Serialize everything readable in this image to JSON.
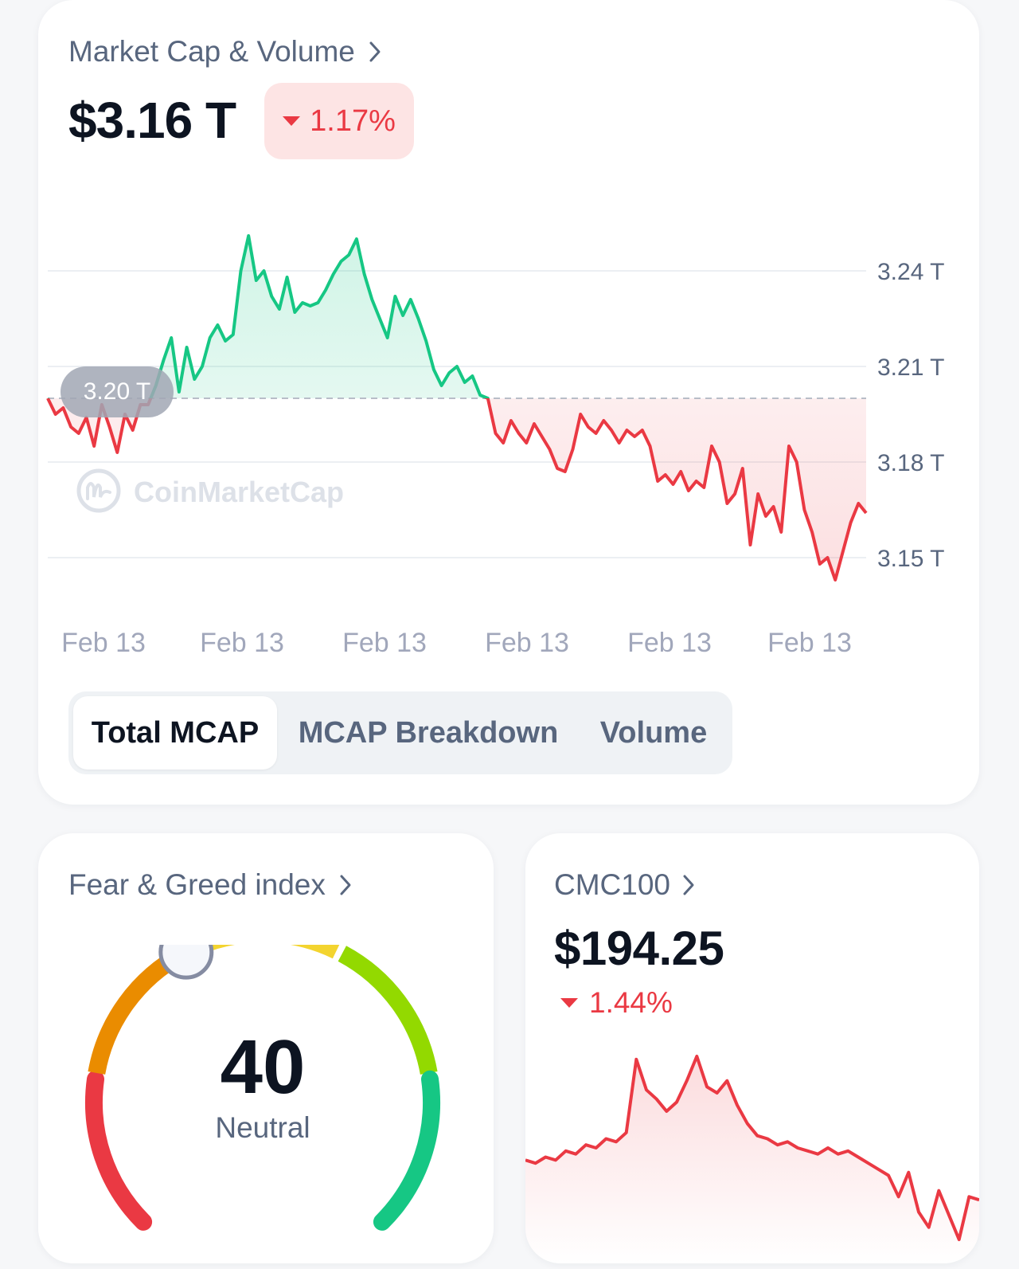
{
  "market_card": {
    "title": "Market Cap & Volume",
    "value": "$3.16 T",
    "change": "1.17%",
    "change_direction": "down",
    "watermark": "CoinMarketCap",
    "reference_label": "3.20 T",
    "tabs": [
      {
        "label": "Total MCAP",
        "active": true
      },
      {
        "label": "MCAP Breakdown",
        "active": false
      },
      {
        "label": "Volume",
        "active": false
      }
    ]
  },
  "fear_greed": {
    "title": "Fear & Greed index",
    "value": "40",
    "label": "Neutral",
    "level": 40
  },
  "cmc100": {
    "title": "CMC100",
    "value": "$194.25",
    "change": "1.44%",
    "change_direction": "down"
  },
  "colors": {
    "up": "#16c784",
    "down": "#ea3943",
    "grid": "#eceff3",
    "label": "#58667e",
    "axis": "#a1a7bb"
  },
  "chart_data": [
    {
      "type": "line",
      "title": "",
      "baseline": 3.2,
      "y_ticks": [
        "3.24 T",
        "3.21 T",
        "3.18 T",
        "3.15 T"
      ],
      "y_tick_values": [
        3.24,
        3.21,
        3.18,
        3.15
      ],
      "ylim": [
        3.13,
        3.265
      ],
      "x_ticks": [
        "Feb 13",
        "Feb 13",
        "Feb 13",
        "Feb 13",
        "Feb 13",
        "Feb 13"
      ],
      "unit": "T",
      "series": [
        {
          "values": [
            3.2,
            3.195,
            3.197,
            3.191,
            3.189,
            3.194,
            3.185,
            3.198,
            3.191,
            3.183,
            3.195,
            3.19,
            3.198,
            3.198,
            3.204,
            3.212,
            3.219,
            3.202,
            3.216,
            3.206,
            3.21,
            3.219,
            3.223,
            3.218,
            3.22,
            3.24,
            3.251,
            3.237,
            3.24,
            3.232,
            3.228,
            3.238,
            3.227,
            3.23,
            3.229,
            3.23,
            3.234,
            3.239,
            3.243,
            3.245,
            3.25,
            3.239,
            3.231,
            3.225,
            3.219,
            3.232,
            3.226,
            3.231,
            3.225,
            3.218,
            3.209,
            3.204,
            3.208,
            3.21,
            3.205,
            3.207,
            3.201,
            3.2,
            3.189,
            3.186,
            3.193,
            3.189,
            3.186,
            3.192,
            3.188,
            3.184,
            3.178,
            3.177,
            3.184,
            3.195,
            3.191,
            3.189,
            3.193,
            3.19,
            3.186,
            3.19,
            3.188,
            3.19,
            3.185,
            3.174,
            3.176,
            3.173,
            3.177,
            3.171,
            3.174,
            3.172,
            3.185,
            3.18,
            3.167,
            3.17,
            3.178,
            3.154,
            3.17,
            3.163,
            3.166,
            3.158,
            3.185,
            3.18,
            3.165,
            3.158,
            3.148,
            3.15,
            3.143,
            3.152,
            3.161,
            3.167,
            3.164
          ]
        }
      ]
    },
    {
      "type": "area",
      "title": "CMC100",
      "series": [
        {
          "values": [
            32,
            31,
            33,
            32,
            35,
            34,
            37,
            36,
            39,
            38,
            41,
            65,
            55,
            52,
            48,
            51,
            58,
            66,
            56,
            54,
            58,
            50,
            44,
            40,
            39,
            37,
            38,
            36,
            35,
            34,
            36,
            34,
            35,
            33,
            31,
            29,
            27,
            20,
            28,
            15,
            10,
            22,
            14,
            6,
            20,
            19
          ]
        }
      ]
    }
  ]
}
